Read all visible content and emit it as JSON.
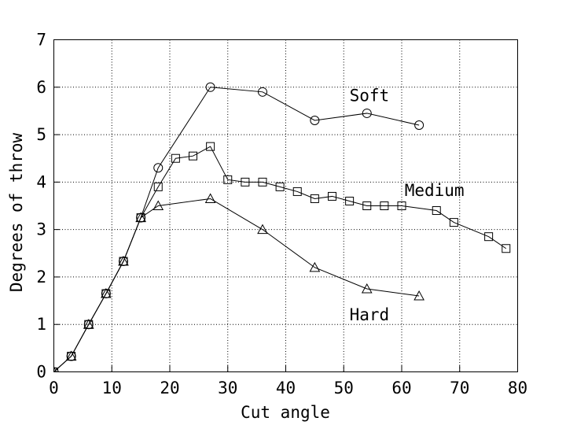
{
  "window": {
    "background": "#ffffff",
    "foreground": "#000000"
  },
  "chart_data": {
    "type": "line",
    "title": "",
    "xlabel": "Cut angle",
    "ylabel": "Degrees of throw",
    "xlim": [
      0,
      80
    ],
    "ylim": [
      0,
      7
    ],
    "xticks": [
      0,
      10,
      20,
      30,
      40,
      50,
      60,
      70,
      80
    ],
    "yticks": [
      0,
      1,
      2,
      3,
      4,
      5,
      6,
      7
    ],
    "grid": "dotted",
    "legend_position": "inline-annotations",
    "series": [
      {
        "name": "Soft",
        "marker": "circle",
        "x": [
          0,
          3,
          6,
          9,
          12,
          15,
          18,
          27,
          36,
          45,
          54,
          63
        ],
        "y": [
          0,
          0.33,
          1.0,
          1.65,
          2.33,
          3.25,
          4.3,
          6.0,
          5.9,
          5.3,
          5.45,
          5.2
        ]
      },
      {
        "name": "Medium",
        "marker": "square",
        "x": [
          0,
          3,
          6,
          9,
          12,
          15,
          18,
          21,
          24,
          27,
          30,
          33,
          36,
          39,
          42,
          45,
          48,
          51,
          54,
          57,
          60,
          66,
          69,
          75,
          78
        ],
        "y": [
          0,
          0.33,
          1.0,
          1.65,
          2.33,
          3.25,
          3.9,
          4.5,
          4.55,
          4.75,
          4.05,
          4.0,
          4.0,
          3.9,
          3.8,
          3.65,
          3.7,
          3.6,
          3.5,
          3.5,
          3.5,
          3.4,
          3.15,
          2.85,
          2.6
        ]
      },
      {
        "name": "Hard",
        "marker": "triangle",
        "x": [
          0,
          3,
          6,
          9,
          12,
          15,
          18,
          27,
          36,
          45,
          54,
          63
        ],
        "y": [
          0,
          0.33,
          1.0,
          1.65,
          2.33,
          3.25,
          3.5,
          3.65,
          3.0,
          2.2,
          1.75,
          1.6
        ]
      }
    ],
    "annotations": [
      {
        "text": "Soft",
        "x": 51.0,
        "y": 5.71
      },
      {
        "text": "Medium",
        "x": 60.5,
        "y": 3.71
      },
      {
        "text": "Hard",
        "x": 51.0,
        "y": 1.09
      }
    ]
  }
}
